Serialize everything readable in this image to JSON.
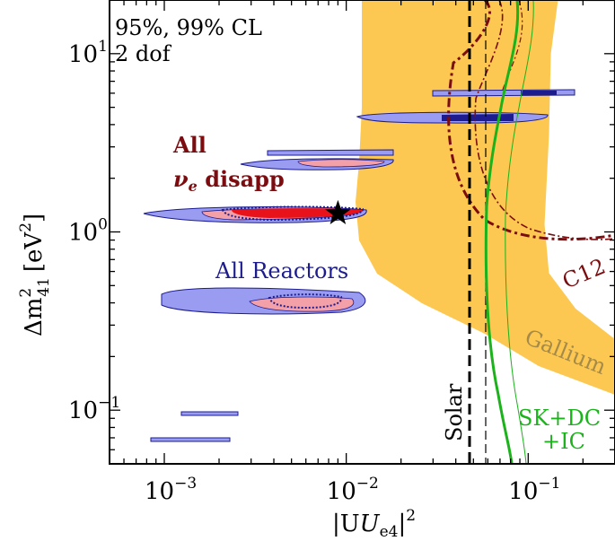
{
  "chart_data": {
    "type": "contour",
    "title": "",
    "notes": {
      "cl": "95%, 99% CL",
      "dof": "2 dof"
    },
    "xlabel": {
      "main": "|U",
      "sub": "e4",
      "sup": "2"
    },
    "ylabel": {
      "main": "Δm",
      "sub": "41",
      "sup": "2",
      "unit": "[eV",
      "unit_sup": "2",
      "unit_close": "]"
    },
    "x_scale": "log",
    "y_scale": "log",
    "xlim": [
      0.0005,
      0.3
    ],
    "ylim": [
      0.05,
      20
    ],
    "x_ticks": [
      {
        "value": 0.001,
        "base": "10",
        "exp": "−3"
      },
      {
        "value": 0.01,
        "base": "10",
        "exp": "−2"
      },
      {
        "value": 0.1,
        "base": "10",
        "exp": "−1"
      }
    ],
    "y_ticks": [
      {
        "value": 0.1,
        "base": "10",
        "exp": "−1"
      },
      {
        "value": 1,
        "base": "10",
        "exp": "0"
      },
      {
        "value": 10,
        "base": "10",
        "exp": "1"
      }
    ],
    "annotations": {
      "all_disapp_line1": "All",
      "all_disapp_nu": "ν",
      "all_disapp_sub": "e",
      "all_disapp_rest": " disapp",
      "all_reactors": "All Reactors",
      "solar": "Solar",
      "c12": "C12",
      "gallium": "Gallium",
      "skdc_line1": "SK+DC",
      "skdc_line2": "+IC"
    },
    "best_fit": {
      "x": 0.009,
      "y": 1.27
    },
    "reactor_islands": [
      {
        "x": [
          0.0008,
          0.016
        ],
        "y": 1.3,
        "dy": 0.04
      },
      {
        "x": [
          0.0013,
          0.015
        ],
        "y": 2.6,
        "dy": 0.05
      },
      {
        "x": [
          0.0009,
          0.02
        ],
        "y": 0.42,
        "dy": 0.06
      },
      {
        "x": [
          0.0011,
          0.003
        ],
        "y": 0.095,
        "dy": 0.005
      },
      {
        "x": [
          0.0007,
          0.002
        ],
        "y": 0.068,
        "dy": 0.005
      },
      {
        "x": [
          0.025,
          0.2
        ],
        "y": 4.4,
        "dy": 0.05
      },
      {
        "x": [
          0.035,
          0.22
        ],
        "y": 6.2,
        "dy": 0.04
      }
    ],
    "solar_limit_99": 0.065,
    "solar_limit_95": 0.082,
    "colors": {
      "reactor_99": "#9a9cf2",
      "reactor_95": "#f4a0a8",
      "disapp_95": "#e8121b",
      "gallium": "#fcc851",
      "c12": "#7b0d10",
      "skdc": "#1bb21b",
      "solar": "#000000",
      "blue_text": "#1c1c8f",
      "dark_red_text": "#7b0d10",
      "gallium_text": "#a58a4a"
    }
  }
}
